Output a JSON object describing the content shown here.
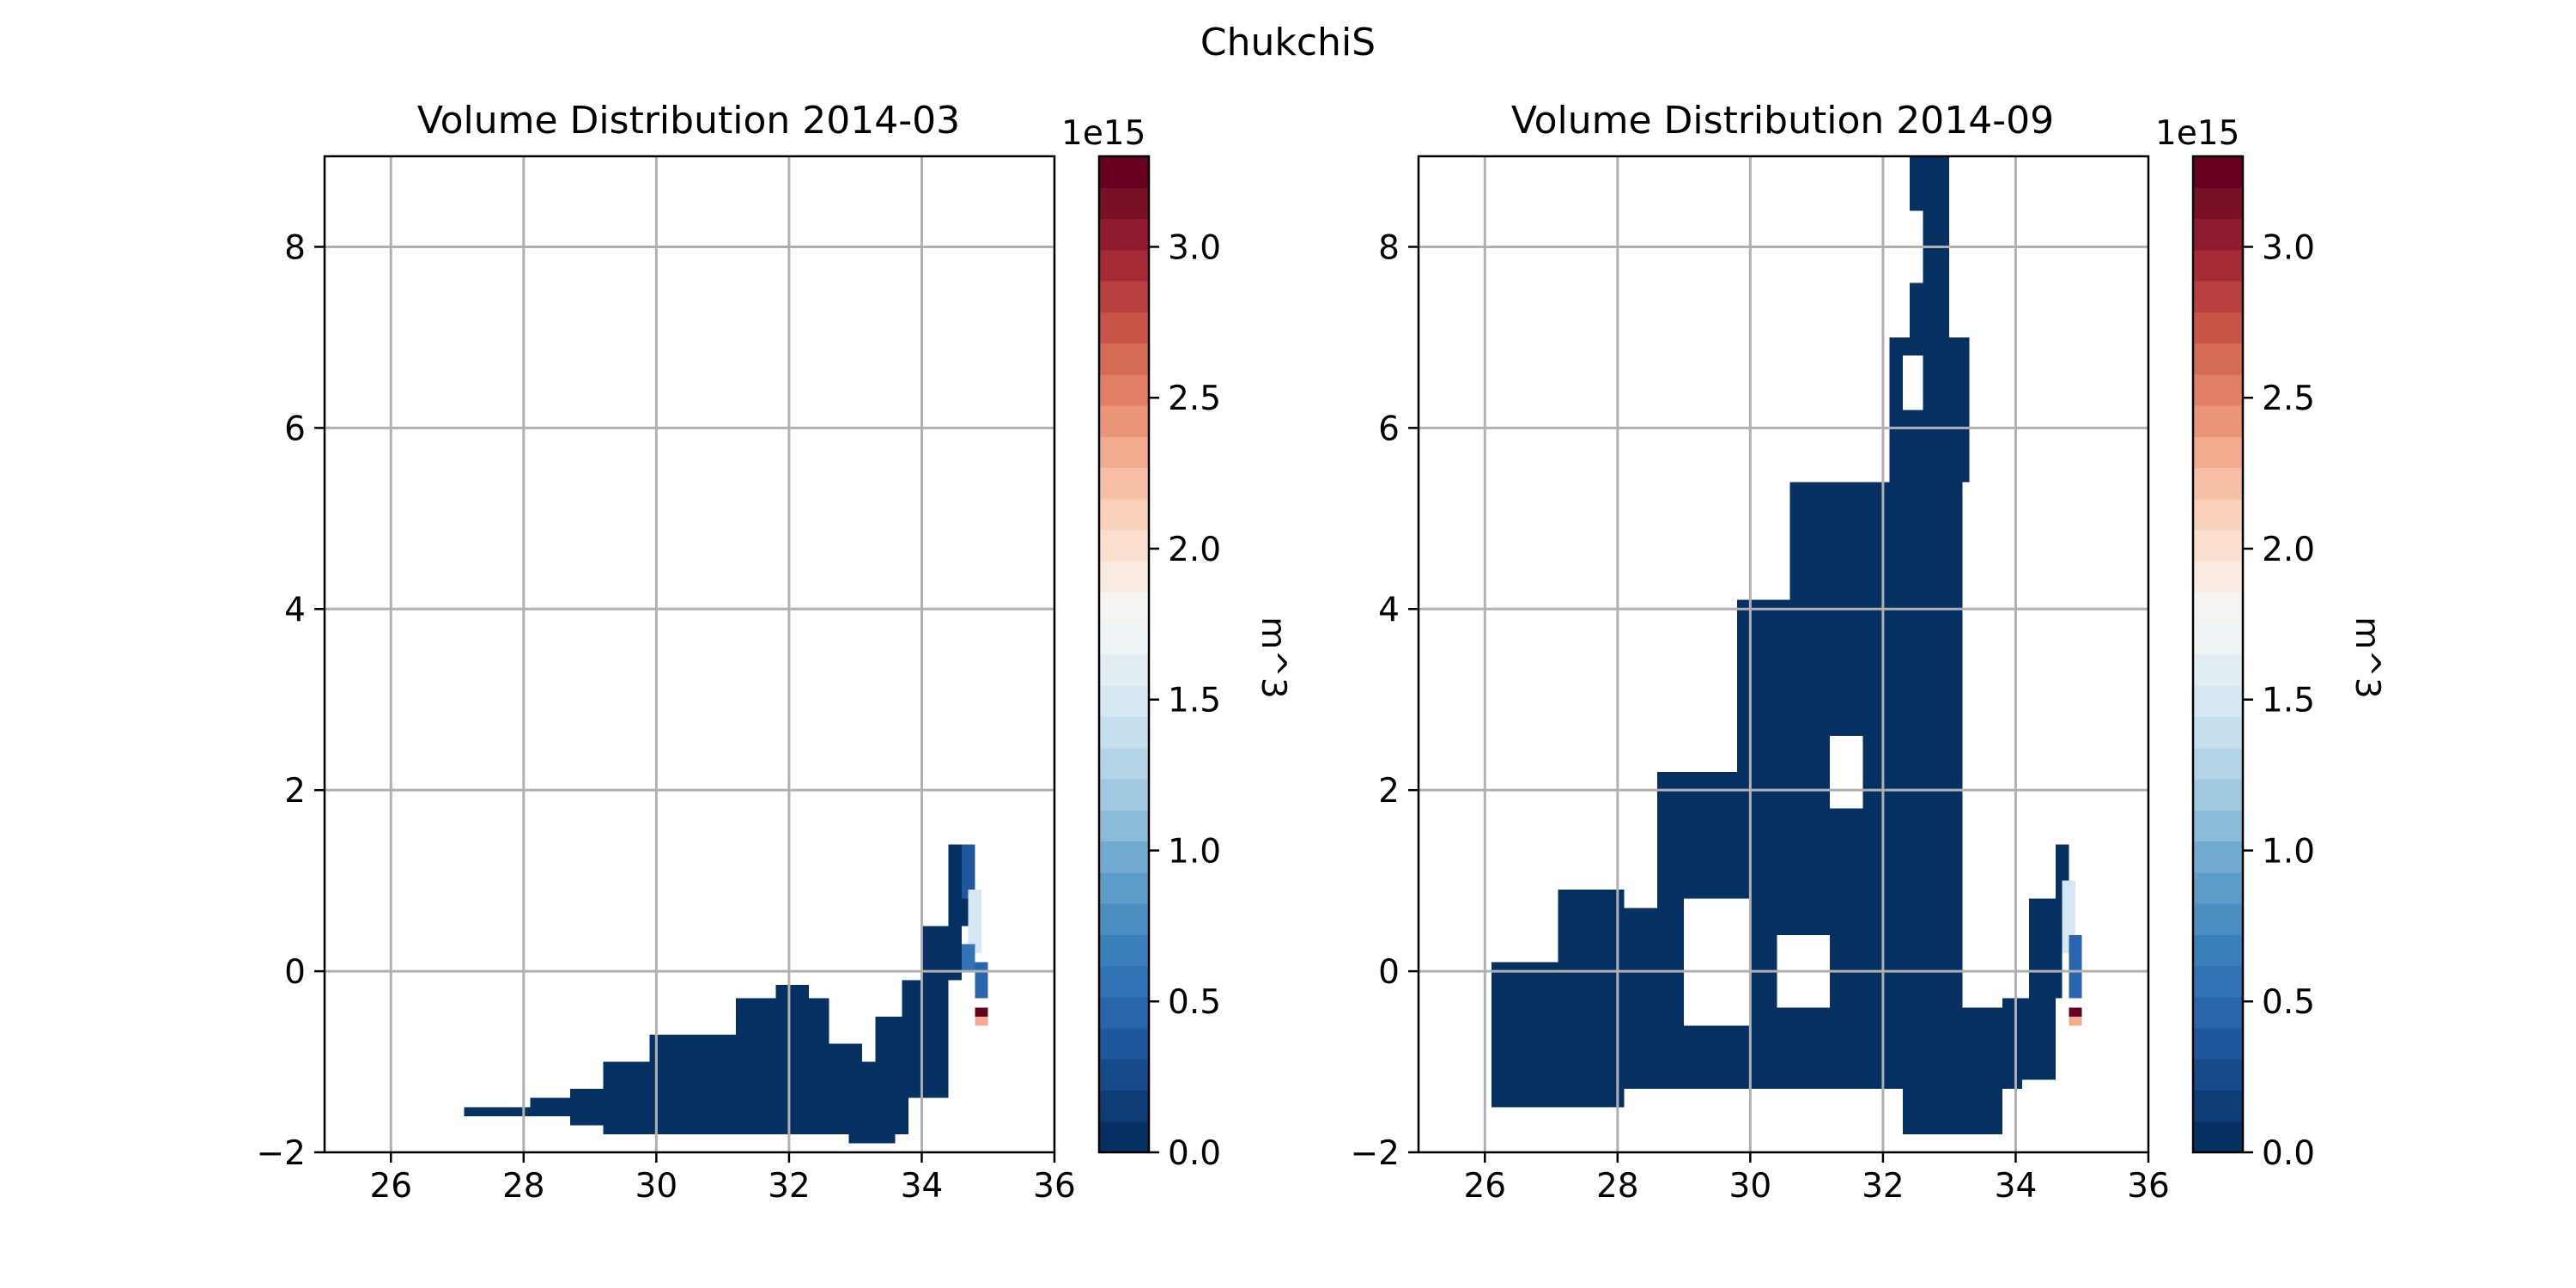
{
  "figure": {
    "suptitle": "ChukchiS"
  },
  "colors": {
    "grid": "#b0b0b0",
    "colormap": [
      "#053061",
      "#0e3d75",
      "#174a89",
      "#1f579d",
      "#2865ad",
      "#3173b4",
      "#3a81bb",
      "#4b8fc2",
      "#5e9dca",
      "#72abd2",
      "#8abbd9",
      "#a0c9e1",
      "#b4d5e8",
      "#c6dfee",
      "#d5e7f1",
      "#e3eef4",
      "#eef3f6",
      "#f6f4f2",
      "#f9ebe2",
      "#fbe0d0",
      "#fad1bb",
      "#f7bfa4",
      "#f2ab8e",
      "#ea9478",
      "#e07f65",
      "#d56a55",
      "#c85548",
      "#b8403f",
      "#a62b37",
      "#901a2f",
      "#781127",
      "#67001f"
    ]
  },
  "chart_data": [
    {
      "type": "heatmap",
      "title": "Volume Distribution 2014-03",
      "xlim": [
        25,
        36
      ],
      "ylim": [
        -2,
        9
      ],
      "xticks": [
        "26",
        "28",
        "30",
        "32",
        "34",
        "36"
      ],
      "yticks": [
        "−2",
        "0",
        "2",
        "4",
        "6",
        "8"
      ],
      "grid": true,
      "colorbar": {
        "label": "m^3",
        "exponent": "1e15",
        "vmin": 0.0,
        "vmax": 3.3,
        "ticks": [
          "0.0",
          "0.5",
          "1.0",
          "1.5",
          "2.0",
          "2.5",
          "3.0"
        ]
      },
      "cell_size": [
        0.2,
        0.1
      ],
      "regions": [
        {
          "x0": 27.1,
          "x1": 28.1,
          "y0": -1.6,
          "y1": -1.5,
          "value": 0.05
        },
        {
          "x0": 28.1,
          "x1": 29.1,
          "y0": -1.6,
          "y1": -1.4,
          "value": 0.05
        },
        {
          "x0": 28.7,
          "x1": 29.9,
          "y0": -1.7,
          "y1": -1.3,
          "value": 0.05
        },
        {
          "x0": 29.2,
          "x1": 33.8,
          "y0": -1.8,
          "y1": -1.0,
          "value": 0.05
        },
        {
          "x0": 29.9,
          "x1": 32.4,
          "y0": -1.8,
          "y1": -0.7,
          "value": 0.05
        },
        {
          "x0": 31.2,
          "x1": 32.6,
          "y0": -1.1,
          "y1": -0.3,
          "value": 0.05
        },
        {
          "x0": 31.8,
          "x1": 32.3,
          "y0": -0.3,
          "y1": -0.15,
          "value": 0.05
        },
        {
          "x0": 32.6,
          "x1": 33.1,
          "y0": -1.3,
          "y1": -0.8,
          "value": 0.05
        },
        {
          "x0": 32.9,
          "x1": 33.6,
          "y0": -1.9,
          "y1": -1.75,
          "value": 0.05
        },
        {
          "x0": 33.3,
          "x1": 34.4,
          "y0": -1.4,
          "y1": -0.5,
          "value": 0.05
        },
        {
          "x0": 33.7,
          "x1": 34.4,
          "y0": -0.5,
          "y1": -0.1,
          "value": 0.05
        },
        {
          "x0": 34.0,
          "x1": 34.6,
          "y0": -0.1,
          "y1": 0.5,
          "value": 0.05
        },
        {
          "x0": 34.4,
          "x1": 34.8,
          "y0": 0.5,
          "y1": 1.4,
          "value": 0.05
        },
        {
          "x0": 34.6,
          "x1": 34.8,
          "y0": 0.8,
          "y1": 1.4,
          "value": 0.35
        },
        {
          "x0": 34.7,
          "x1": 34.9,
          "y0": 0.2,
          "y1": 0.9,
          "value": 1.45
        },
        {
          "x0": 34.6,
          "x1": 34.8,
          "y0": 0.0,
          "y1": 0.3,
          "value": 0.6
        },
        {
          "x0": 34.8,
          "x1": 35.0,
          "y0": -0.3,
          "y1": 0.1,
          "value": 0.45
        },
        {
          "x0": 34.8,
          "x1": 35.0,
          "y0": -0.5,
          "y1": -0.4,
          "value": 3.3
        },
        {
          "x0": 34.8,
          "x1": 35.0,
          "y0": -0.6,
          "y1": -0.5,
          "value": 2.3
        }
      ]
    },
    {
      "type": "heatmap",
      "title": "Volume Distribution 2014-09",
      "xlim": [
        25,
        36
      ],
      "ylim": [
        -2,
        9
      ],
      "xticks": [
        "26",
        "28",
        "30",
        "32",
        "34",
        "36"
      ],
      "yticks": [
        "−2",
        "0",
        "2",
        "4",
        "6",
        "8"
      ],
      "grid": true,
      "colorbar": {
        "label": "m^3",
        "exponent": "1e15",
        "vmin": 0.0,
        "vmax": 3.3,
        "ticks": [
          "0.0",
          "0.5",
          "1.0",
          "1.5",
          "2.0",
          "2.5",
          "3.0"
        ]
      },
      "cell_size": [
        0.2,
        0.1
      ],
      "regions": [
        {
          "x0": 26.1,
          "x1": 27.1,
          "y0": -1.5,
          "y1": 0.1,
          "value": 0.05
        },
        {
          "x0": 27.1,
          "x1": 28.1,
          "y0": -1.5,
          "y1": 0.9,
          "value": 0.05
        },
        {
          "x0": 28.1,
          "x1": 33.2,
          "y0": -1.3,
          "y1": 0.7,
          "value": 0.05
        },
        {
          "x0": 28.6,
          "x1": 33.2,
          "y0": 0.7,
          "y1": 2.2,
          "value": 0.05
        },
        {
          "x0": 29.8,
          "x1": 33.2,
          "y0": 2.2,
          "y1": 4.1,
          "value": 0.05
        },
        {
          "x0": 30.6,
          "x1": 33.2,
          "y0": 4.1,
          "y1": 5.4,
          "value": 0.05
        },
        {
          "x0": 32.1,
          "x1": 33.3,
          "y0": 5.4,
          "y1": 7.0,
          "value": 0.05
        },
        {
          "x0": 32.4,
          "x1": 33.0,
          "y0": 7.0,
          "y1": 9.0,
          "value": 0.05
        },
        {
          "x0": 31.2,
          "x1": 34.1,
          "y0": -1.3,
          "y1": -0.4,
          "value": 0.05
        },
        {
          "x0": 32.3,
          "x1": 33.8,
          "y0": -1.8,
          "y1": -1.3,
          "value": 0.05
        },
        {
          "x0": 33.8,
          "x1": 34.6,
          "y0": -1.2,
          "y1": -0.3,
          "value": 0.05
        },
        {
          "x0": 34.2,
          "x1": 34.7,
          "y0": -0.3,
          "y1": 0.8,
          "value": 0.05
        },
        {
          "x0": 34.6,
          "x1": 34.8,
          "y0": 0.4,
          "y1": 1.4,
          "value": 0.05
        },
        {
          "x0": 34.7,
          "x1": 34.9,
          "y0": 0.2,
          "y1": 1.0,
          "value": 1.45
        },
        {
          "x0": 34.8,
          "x1": 35.0,
          "y0": -0.3,
          "y1": 0.4,
          "value": 0.45
        },
        {
          "x0": 34.8,
          "x1": 35.0,
          "y0": -0.5,
          "y1": -0.4,
          "value": 3.3
        },
        {
          "x0": 34.8,
          "x1": 35.0,
          "y0": -0.6,
          "y1": -0.5,
          "value": 2.3
        }
      ],
      "holes": [
        {
          "x0": 29.0,
          "x1": 30.0,
          "y0": -0.6,
          "y1": 0.8
        },
        {
          "x0": 30.4,
          "x1": 31.2,
          "y0": -0.4,
          "y1": 0.4
        },
        {
          "x0": 31.2,
          "x1": 31.7,
          "y0": 1.8,
          "y1": 2.6
        },
        {
          "x0": 32.2,
          "x1": 32.6,
          "y0": 7.6,
          "y1": 8.4
        },
        {
          "x0": 32.3,
          "x1": 32.6,
          "y0": 6.2,
          "y1": 6.8
        }
      ]
    }
  ]
}
